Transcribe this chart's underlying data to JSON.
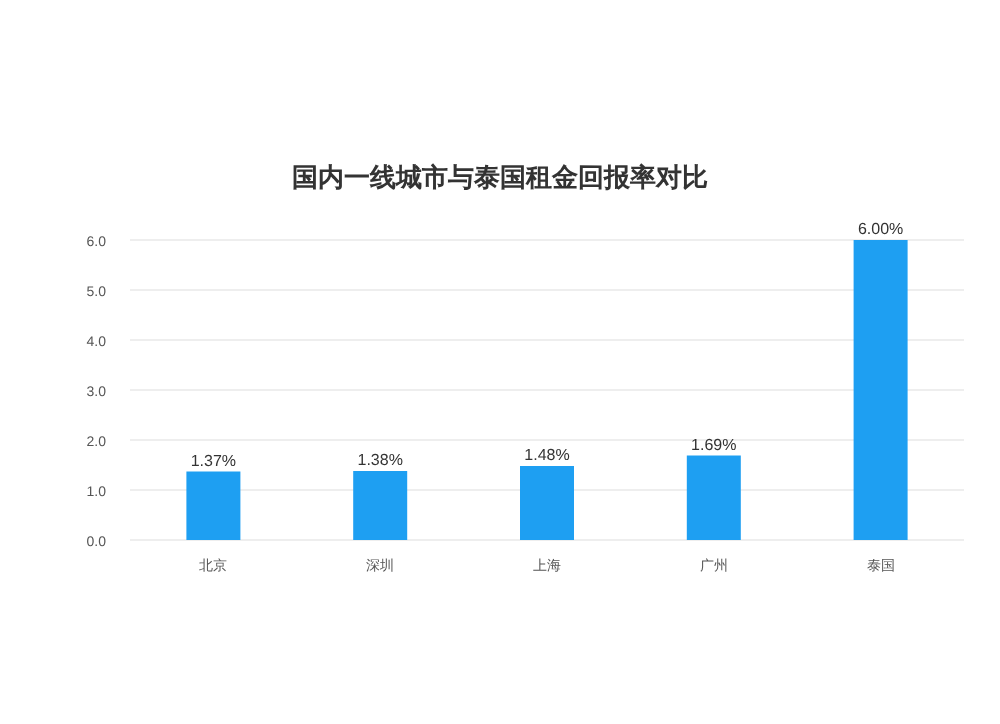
{
  "chart_data": {
    "type": "bar",
    "title": "国内一线城市与泰国租金回报率对比",
    "categories": [
      "北京",
      "深圳",
      "上海",
      "广州",
      "泰国"
    ],
    "values": [
      1.37,
      1.38,
      1.48,
      1.69,
      6.0
    ],
    "value_labels": [
      "1.37%",
      "1.38%",
      "1.48%",
      "1.69%",
      "6.00%"
    ],
    "color": "#1e9ff2",
    "ylim": [
      0,
      6
    ],
    "yticks": [
      {
        "value": 0,
        "label": "0.0"
      },
      {
        "value": 1,
        "label": "1.0"
      },
      {
        "value": 2,
        "label": "2.0"
      },
      {
        "value": 3,
        "label": "3.0"
      },
      {
        "value": 4,
        "label": "4.0"
      },
      {
        "value": 5,
        "label": "5.0"
      },
      {
        "value": 6,
        "label": "6.0"
      }
    ],
    "grid": "y"
  }
}
